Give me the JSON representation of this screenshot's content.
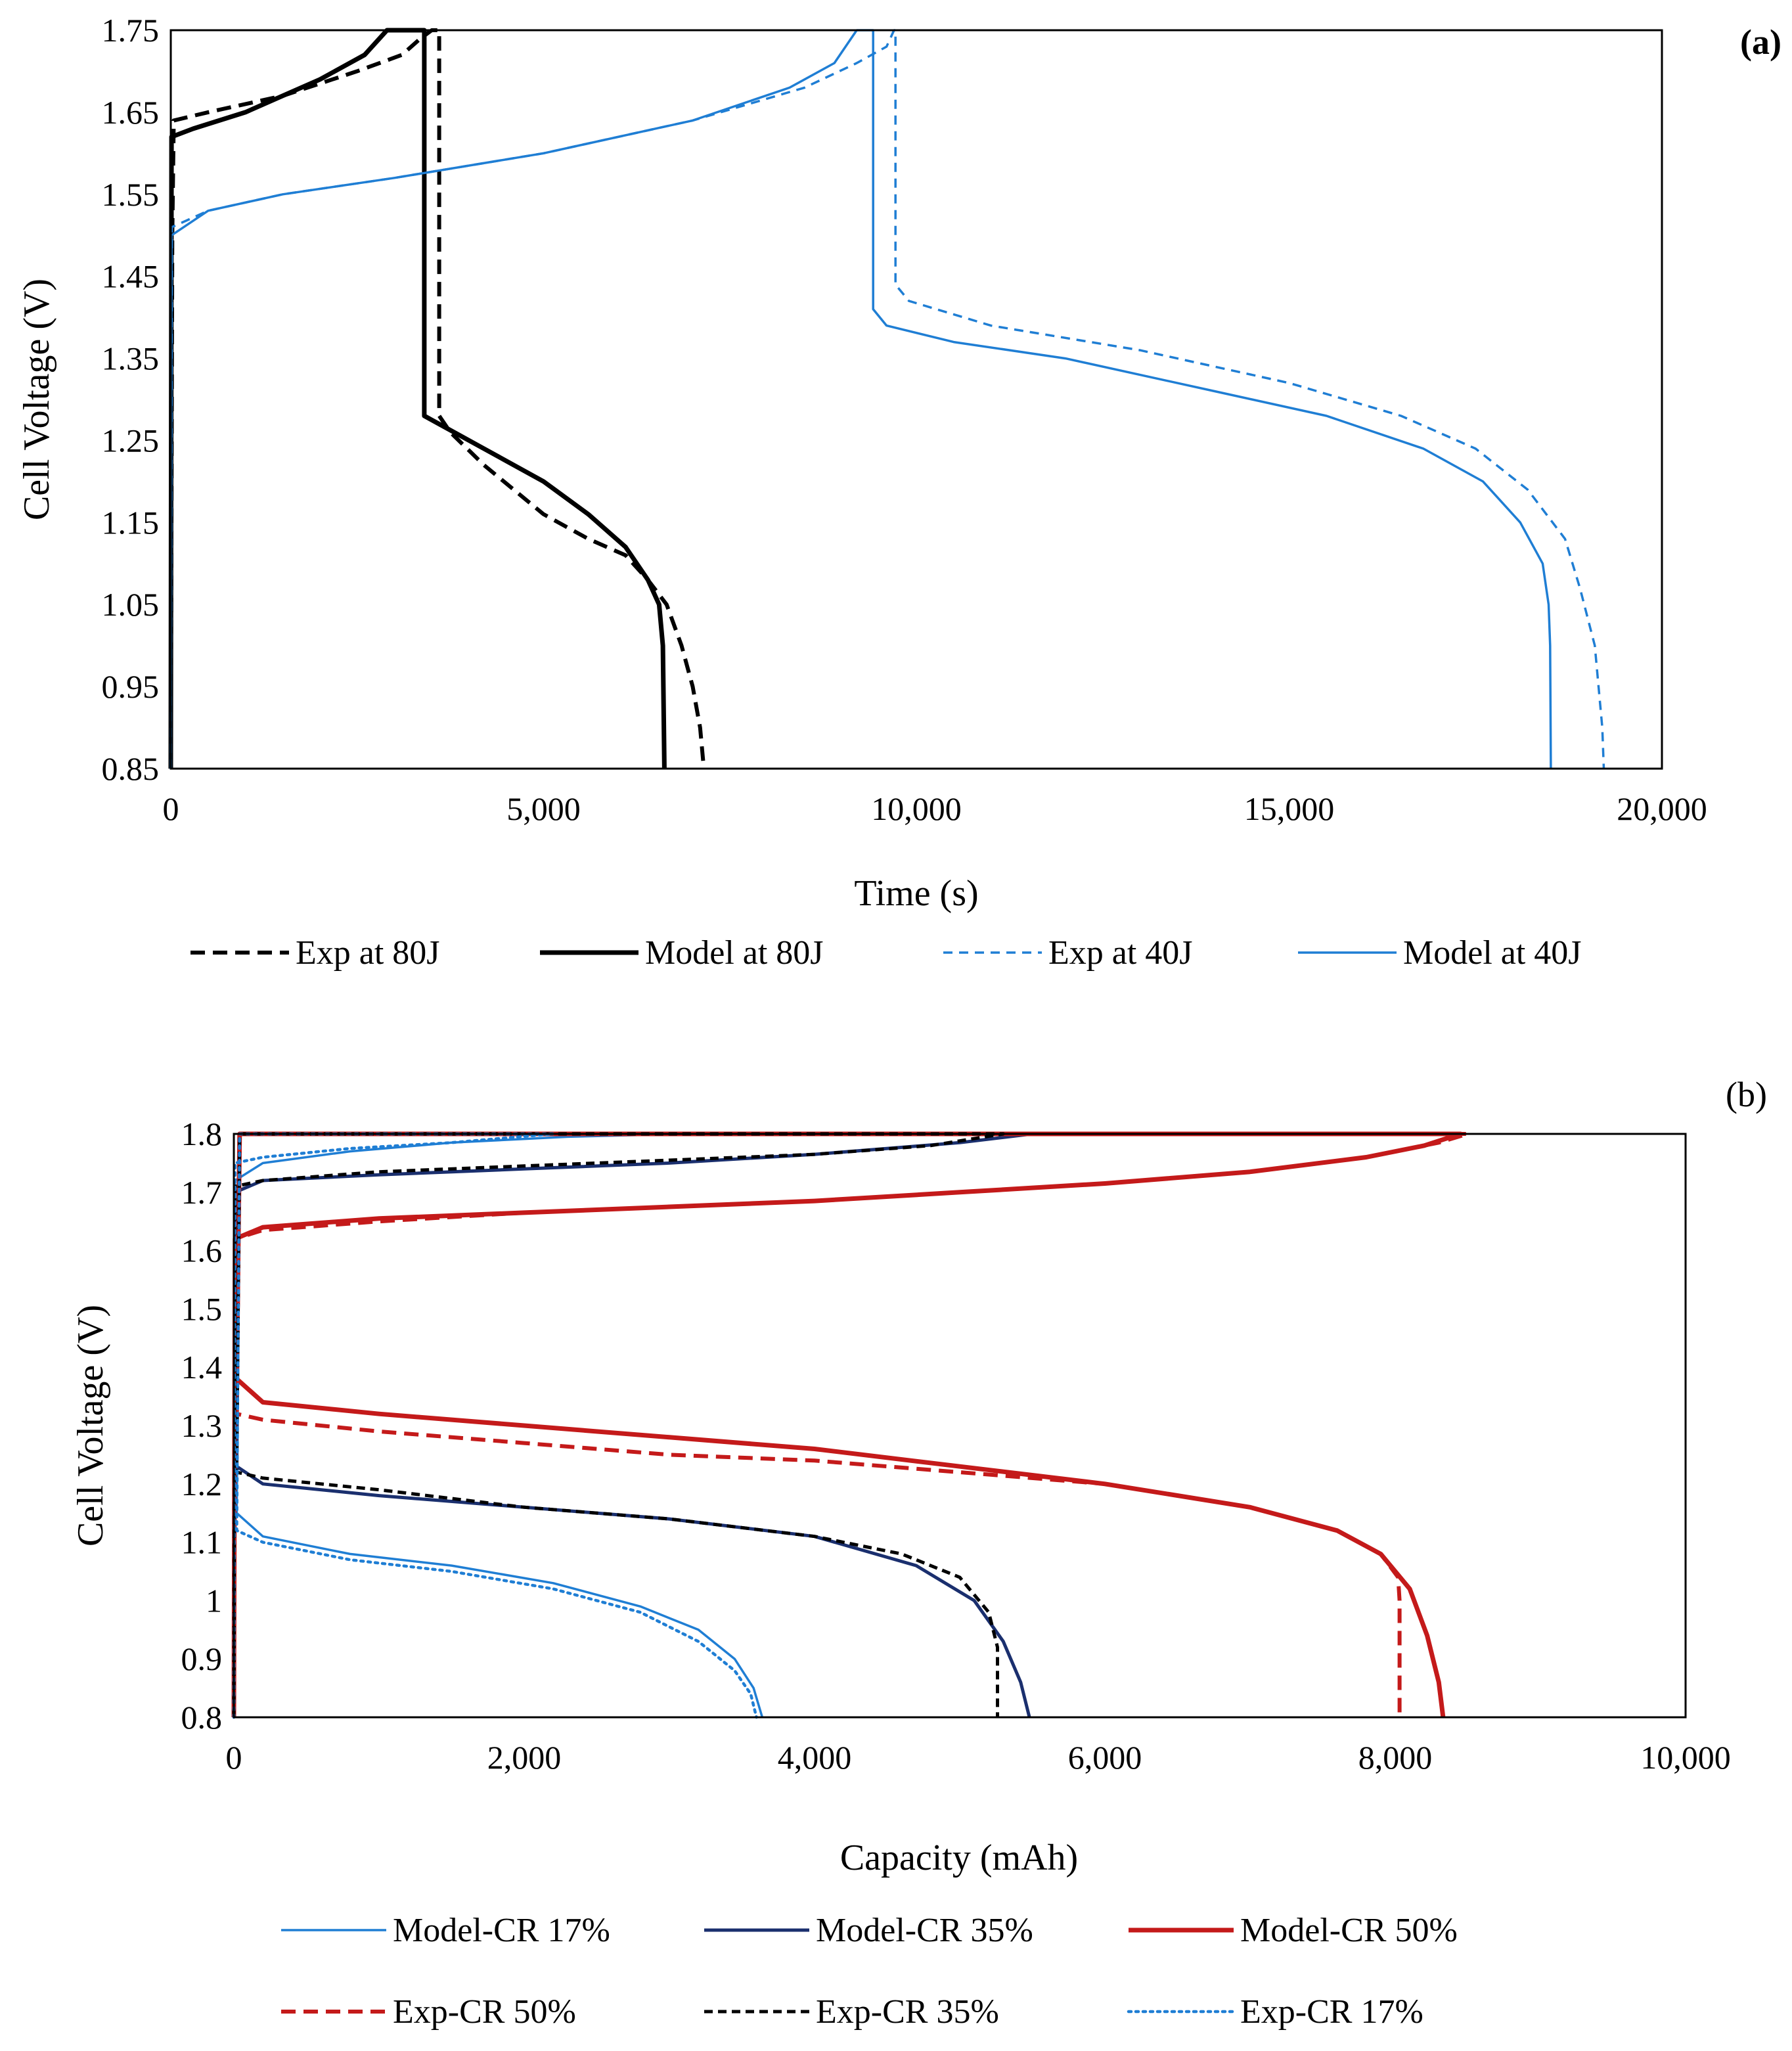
{
  "chart_data": [
    {
      "type": "line",
      "panel_label": "(a)",
      "xlabel": "Time (s)",
      "ylabel": "Cell Voltage (V)",
      "xlim": [
        0,
        20000
      ],
      "ylim": [
        0.85,
        1.75
      ],
      "x_ticks": [
        0,
        5000,
        10000,
        15000,
        20000
      ],
      "x_tick_labels": [
        "0",
        "5,000",
        "10,000",
        "15,000",
        "20,000"
      ],
      "y_ticks": [
        0.85,
        0.95,
        1.05,
        1.15,
        1.25,
        1.35,
        1.45,
        1.55,
        1.65,
        1.75
      ],
      "y_tick_labels": [
        "0.85",
        "0.95",
        "1.05",
        "1.15",
        "1.25",
        "1.35",
        "1.45",
        "1.55",
        "1.65",
        "1.75"
      ],
      "grid": false,
      "legend_position": "bottom",
      "series": [
        {
          "name": "Exp at 80J",
          "color": "#000000",
          "style": "dashed-thick",
          "points": [
            [
              0,
              0.85
            ],
            [
              20,
              1.5
            ],
            [
              40,
              1.64
            ],
            [
              500,
              1.65
            ],
            [
              1500,
              1.67
            ],
            [
              2500,
              1.7
            ],
            [
              3100,
              1.72
            ],
            [
              3350,
              1.74
            ],
            [
              3500,
              1.75
            ],
            [
              3600,
              1.75
            ],
            [
              3600,
              1.28
            ],
            [
              3750,
              1.26
            ],
            [
              4200,
              1.22
            ],
            [
              5000,
              1.16
            ],
            [
              5600,
              1.13
            ],
            [
              6100,
              1.11
            ],
            [
              6400,
              1.08
            ],
            [
              6650,
              1.05
            ],
            [
              6850,
              1.0
            ],
            [
              7000,
              0.95
            ],
            [
              7100,
              0.9
            ],
            [
              7150,
              0.85
            ]
          ]
        },
        {
          "name": "Model at 80J",
          "color": "#000000",
          "style": "solid-thick",
          "points": [
            [
              0,
              0.85
            ],
            [
              10,
              1.62
            ],
            [
              300,
              1.63
            ],
            [
              1000,
              1.65
            ],
            [
              2000,
              1.69
            ],
            [
              2600,
              1.72
            ],
            [
              2900,
              1.75
            ],
            [
              3400,
              1.75
            ],
            [
              3400,
              1.28
            ],
            [
              3600,
              1.27
            ],
            [
              4200,
              1.24
            ],
            [
              5000,
              1.2
            ],
            [
              5600,
              1.16
            ],
            [
              6100,
              1.12
            ],
            [
              6400,
              1.08
            ],
            [
              6550,
              1.05
            ],
            [
              6600,
              1.0
            ],
            [
              6620,
              0.85
            ]
          ]
        },
        {
          "name": "Exp at 40J",
          "color": "#1f7ed4",
          "style": "dashed-thin",
          "points": [
            [
              0,
              0.85
            ],
            [
              15,
              1.51
            ],
            [
              500,
              1.53
            ],
            [
              1500,
              1.55
            ],
            [
              3000,
              1.57
            ],
            [
              5000,
              1.6
            ],
            [
              7000,
              1.64
            ],
            [
              8500,
              1.68
            ],
            [
              9200,
              1.71
            ],
            [
              9600,
              1.73
            ],
            [
              9700,
              1.75
            ],
            [
              9720,
              1.75
            ],
            [
              9720,
              1.44
            ],
            [
              9900,
              1.42
            ],
            [
              11000,
              1.39
            ],
            [
              13000,
              1.36
            ],
            [
              15000,
              1.32
            ],
            [
              16500,
              1.28
            ],
            [
              17500,
              1.24
            ],
            [
              18200,
              1.19
            ],
            [
              18700,
              1.13
            ],
            [
              18900,
              1.07
            ],
            [
              19100,
              1.0
            ],
            [
              19200,
              0.9
            ],
            [
              19220,
              0.85
            ]
          ]
        },
        {
          "name": "Model at 40J",
          "color": "#1f7ed4",
          "style": "solid-thin",
          "points": [
            [
              0,
              0.85
            ],
            [
              10,
              1.5
            ],
            [
              500,
              1.53
            ],
            [
              1500,
              1.55
            ],
            [
              3000,
              1.57
            ],
            [
              5000,
              1.6
            ],
            [
              7000,
              1.64
            ],
            [
              8300,
              1.68
            ],
            [
              8900,
              1.71
            ],
            [
              9200,
              1.75
            ],
            [
              9420,
              1.75
            ],
            [
              9420,
              1.41
            ],
            [
              9600,
              1.39
            ],
            [
              10500,
              1.37
            ],
            [
              12000,
              1.35
            ],
            [
              14000,
              1.31
            ],
            [
              15500,
              1.28
            ],
            [
              16800,
              1.24
            ],
            [
              17600,
              1.2
            ],
            [
              18100,
              1.15
            ],
            [
              18400,
              1.1
            ],
            [
              18480,
              1.05
            ],
            [
              18500,
              1.0
            ],
            [
              18510,
              0.85
            ]
          ]
        }
      ]
    },
    {
      "type": "line",
      "panel_label": "(b)",
      "xlabel": "Capacity (mAh)",
      "ylabel": "Cell Voltage (V)",
      "xlim": [
        0,
        10000
      ],
      "ylim": [
        0.8,
        1.8
      ],
      "x_ticks": [
        0,
        2000,
        4000,
        6000,
        8000,
        10000
      ],
      "x_tick_labels": [
        "0",
        "2,000",
        "4,000",
        "6,000",
        "8,000",
        "10,000"
      ],
      "y_ticks": [
        0.8,
        0.9,
        1.0,
        1.1,
        1.2,
        1.3,
        1.4,
        1.5,
        1.6,
        1.7,
        1.8
      ],
      "y_tick_labels": [
        "0.8",
        "0.9",
        "1",
        "1.1",
        "1.2",
        "1.3",
        "1.4",
        "1.5",
        "1.6",
        "1.7",
        "1.8"
      ],
      "grid": false,
      "legend_position": "bottom",
      "series": [
        {
          "name": "Model-CR 17%",
          "color": "#1f7ed4",
          "style": "solid-thin",
          "points": [
            [
              0,
              0.8
            ],
            [
              8,
              1.72
            ],
            [
              200,
              1.75
            ],
            [
              800,
              1.77
            ],
            [
              1500,
              1.785
            ],
            [
              2300,
              1.795
            ],
            [
              3100,
              1.8
            ],
            [
              3100,
              1.8
            ],
            [
              40,
              1.8
            ],
            [
              20,
              1.15
            ],
            [
              200,
              1.11
            ],
            [
              800,
              1.08
            ],
            [
              1500,
              1.06
            ],
            [
              2200,
              1.03
            ],
            [
              2800,
              0.99
            ],
            [
              3200,
              0.95
            ],
            [
              3450,
              0.9
            ],
            [
              3580,
              0.85
            ],
            [
              3640,
              0.8
            ]
          ]
        },
        {
          "name": "Model-CR 35%",
          "color": "#1a2f6e",
          "style": "solid-med",
          "points": [
            [
              0,
              0.8
            ],
            [
              8,
              1.7
            ],
            [
              200,
              1.72
            ],
            [
              1000,
              1.73
            ],
            [
              2000,
              1.74
            ],
            [
              3000,
              1.75
            ],
            [
              4000,
              1.765
            ],
            [
              5000,
              1.785
            ],
            [
              5500,
              1.8
            ],
            [
              5500,
              1.8
            ],
            [
              40,
              1.8
            ],
            [
              20,
              1.23
            ],
            [
              200,
              1.2
            ],
            [
              1000,
              1.18
            ],
            [
              2000,
              1.16
            ],
            [
              3000,
              1.14
            ],
            [
              4000,
              1.11
            ],
            [
              4700,
              1.06
            ],
            [
              5100,
              1.0
            ],
            [
              5300,
              0.93
            ],
            [
              5420,
              0.86
            ],
            [
              5480,
              0.8
            ]
          ]
        },
        {
          "name": "Model-CR 50%",
          "color": "#c41a1a",
          "style": "solid-thick",
          "points": [
            [
              0,
              0.8
            ],
            [
              8,
              1.62
            ],
            [
              200,
              1.64
            ],
            [
              1000,
              1.655
            ],
            [
              2000,
              1.665
            ],
            [
              3000,
              1.675
            ],
            [
              4000,
              1.685
            ],
            [
              5000,
              1.7
            ],
            [
              6000,
              1.715
            ],
            [
              7000,
              1.735
            ],
            [
              7800,
              1.76
            ],
            [
              8200,
              1.78
            ],
            [
              8450,
              1.8
            ],
            [
              8450,
              1.8
            ],
            [
              40,
              1.8
            ],
            [
              20,
              1.38
            ],
            [
              200,
              1.34
            ],
            [
              1000,
              1.32
            ],
            [
              2000,
              1.3
            ],
            [
              3000,
              1.28
            ],
            [
              4000,
              1.26
            ],
            [
              5000,
              1.23
            ],
            [
              6000,
              1.2
            ],
            [
              7000,
              1.16
            ],
            [
              7600,
              1.12
            ],
            [
              7900,
              1.08
            ],
            [
              8100,
              1.02
            ],
            [
              8220,
              0.94
            ],
            [
              8300,
              0.86
            ],
            [
              8330,
              0.8
            ]
          ]
        },
        {
          "name": "Exp-CR 50%",
          "color": "#c41a1a",
          "style": "dashed-thick",
          "points": [
            [
              0,
              0.8
            ],
            [
              8,
              1.62
            ],
            [
              200,
              1.635
            ],
            [
              1000,
              1.65
            ],
            [
              2000,
              1.665
            ],
            [
              3000,
              1.675
            ],
            [
              4000,
              1.685
            ],
            [
              5000,
              1.7
            ],
            [
              6000,
              1.715
            ],
            [
              7000,
              1.735
            ],
            [
              7800,
              1.76
            ],
            [
              8300,
              1.785
            ],
            [
              8500,
              1.8
            ],
            [
              8500,
              1.8
            ],
            [
              40,
              1.8
            ],
            [
              20,
              1.32
            ],
            [
              200,
              1.31
            ],
            [
              1000,
              1.29
            ],
            [
              2000,
              1.27
            ],
            [
              3000,
              1.25
            ],
            [
              4000,
              1.24
            ],
            [
              5000,
              1.22
            ],
            [
              6000,
              1.2
            ],
            [
              7000,
              1.16
            ],
            [
              7600,
              1.12
            ],
            [
              7900,
              1.08
            ],
            [
              8020,
              1.04
            ],
            [
              8030,
              1.0
            ],
            [
              8030,
              0.8
            ]
          ]
        },
        {
          "name": "Exp-CR 35%",
          "color": "#000000",
          "style": "dashed-med",
          "points": [
            [
              0,
              0.8
            ],
            [
              8,
              1.71
            ],
            [
              200,
              1.72
            ],
            [
              1000,
              1.735
            ],
            [
              2000,
              1.745
            ],
            [
              3000,
              1.755
            ],
            [
              4000,
              1.765
            ],
            [
              4800,
              1.78
            ],
            [
              5300,
              1.8
            ],
            [
              5300,
              1.8
            ],
            [
              40,
              1.8
            ],
            [
              20,
              1.22
            ],
            [
              200,
              1.21
            ],
            [
              1000,
              1.19
            ],
            [
              2000,
              1.16
            ],
            [
              3000,
              1.14
            ],
            [
              4000,
              1.11
            ],
            [
              4600,
              1.08
            ],
            [
              5000,
              1.04
            ],
            [
              5200,
              0.98
            ],
            [
              5260,
              0.92
            ],
            [
              5260,
              0.8
            ]
          ]
        },
        {
          "name": "Exp-CR 17%",
          "color": "#1f7ed4",
          "style": "dotted",
          "points": [
            [
              0,
              0.8
            ],
            [
              8,
              1.75
            ],
            [
              200,
              1.76
            ],
            [
              800,
              1.775
            ],
            [
              1500,
              1.785
            ],
            [
              2200,
              1.8
            ],
            [
              2200,
              1.8
            ],
            [
              40,
              1.8
            ],
            [
              20,
              1.12
            ],
            [
              200,
              1.1
            ],
            [
              800,
              1.07
            ],
            [
              1500,
              1.05
            ],
            [
              2200,
              1.02
            ],
            [
              2800,
              0.98
            ],
            [
              3200,
              0.93
            ],
            [
              3450,
              0.88
            ],
            [
              3560,
              0.84
            ],
            [
              3600,
              0.8
            ]
          ]
        }
      ],
      "legend_rows": [
        [
          "Model-CR 17%",
          "Model-CR 35%",
          "Model-CR 50%"
        ],
        [
          "Exp-CR 50%",
          "Exp-CR 35%",
          "Exp-CR 17%"
        ]
      ]
    }
  ]
}
